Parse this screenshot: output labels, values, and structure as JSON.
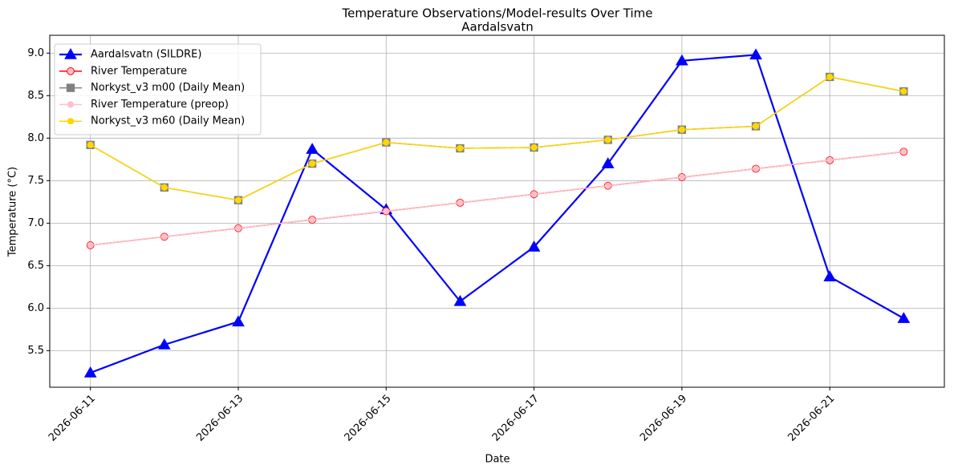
{
  "chart_data": {
    "type": "line",
    "title": "Temperature Observations/Model-results Over Time",
    "subtitle": "Aardalsvatn",
    "xlabel": "Date",
    "ylabel": "Temperature (°C)",
    "x": [
      "2026-06-11",
      "2026-06-12",
      "2026-06-13",
      "2026-06-14",
      "2026-06-15",
      "2026-06-16",
      "2026-06-17",
      "2026-06-18",
      "2026-06-19",
      "2026-06-20",
      "2026-06-21",
      "2026-06-22"
    ],
    "xticks": [
      "2026-06-11",
      "2026-06-13",
      "2026-06-15",
      "2026-06-17",
      "2026-06-19",
      "2026-06-21"
    ],
    "ylim": [
      5.07,
      9.21
    ],
    "yticks": [
      5.5,
      {
        "value": 6,
        "label": "6.0"
      },
      6.5,
      {
        "value": 7,
        "label": "7.0"
      },
      7.5,
      {
        "value": 8,
        "label": "8.0"
      },
      8.5,
      {
        "value": 9,
        "label": "9.0"
      }
    ],
    "grid": true,
    "legend": "upper left",
    "series": [
      {
        "name": "Aardalsvatn (SILDRE)",
        "color": "#0000ff",
        "marker": "^",
        "markersize": 14,
        "linewidth": 2.2,
        "values": [
          5.24,
          5.57,
          5.84,
          7.87,
          7.16,
          6.08,
          6.72,
          7.7,
          8.91,
          8.98,
          6.37,
          5.88
        ]
      },
      {
        "name": "River Temperature",
        "color": "#ff0000",
        "marker": "o",
        "markersize": 11,
        "linewidth": 1.5,
        "values": [
          6.74,
          6.84,
          6.94,
          7.04,
          7.14,
          7.24,
          7.34,
          7.44,
          7.54,
          7.64,
          7.74,
          7.84
        ]
      },
      {
        "name": "Norkyst_v3 m00 (Daily Mean)",
        "color": "#808080",
        "marker": "s",
        "markersize": 11,
        "linewidth": 1.5,
        "values": [
          7.92,
          7.42,
          7.27,
          7.7,
          7.95,
          7.88,
          7.89,
          7.98,
          8.1,
          8.14,
          8.72,
          8.55
        ]
      },
      {
        "name": "River Temperature (preop)",
        "color": "#ffc0cb",
        "marker": "o",
        "markersize": 9,
        "linewidth": 1.5,
        "values": [
          6.74,
          6.84,
          6.94,
          7.04,
          7.14,
          7.24,
          7.34,
          7.44,
          7.54,
          7.64,
          7.74,
          7.84
        ]
      },
      {
        "name": "Norkyst_v3 m60 (Daily Mean)",
        "color": "#ffd700",
        "marker": "o",
        "markersize": 9,
        "linewidth": 1.5,
        "values": [
          7.92,
          7.42,
          7.27,
          7.7,
          7.95,
          7.88,
          7.89,
          7.98,
          8.1,
          8.14,
          8.72,
          8.55
        ]
      }
    ]
  }
}
